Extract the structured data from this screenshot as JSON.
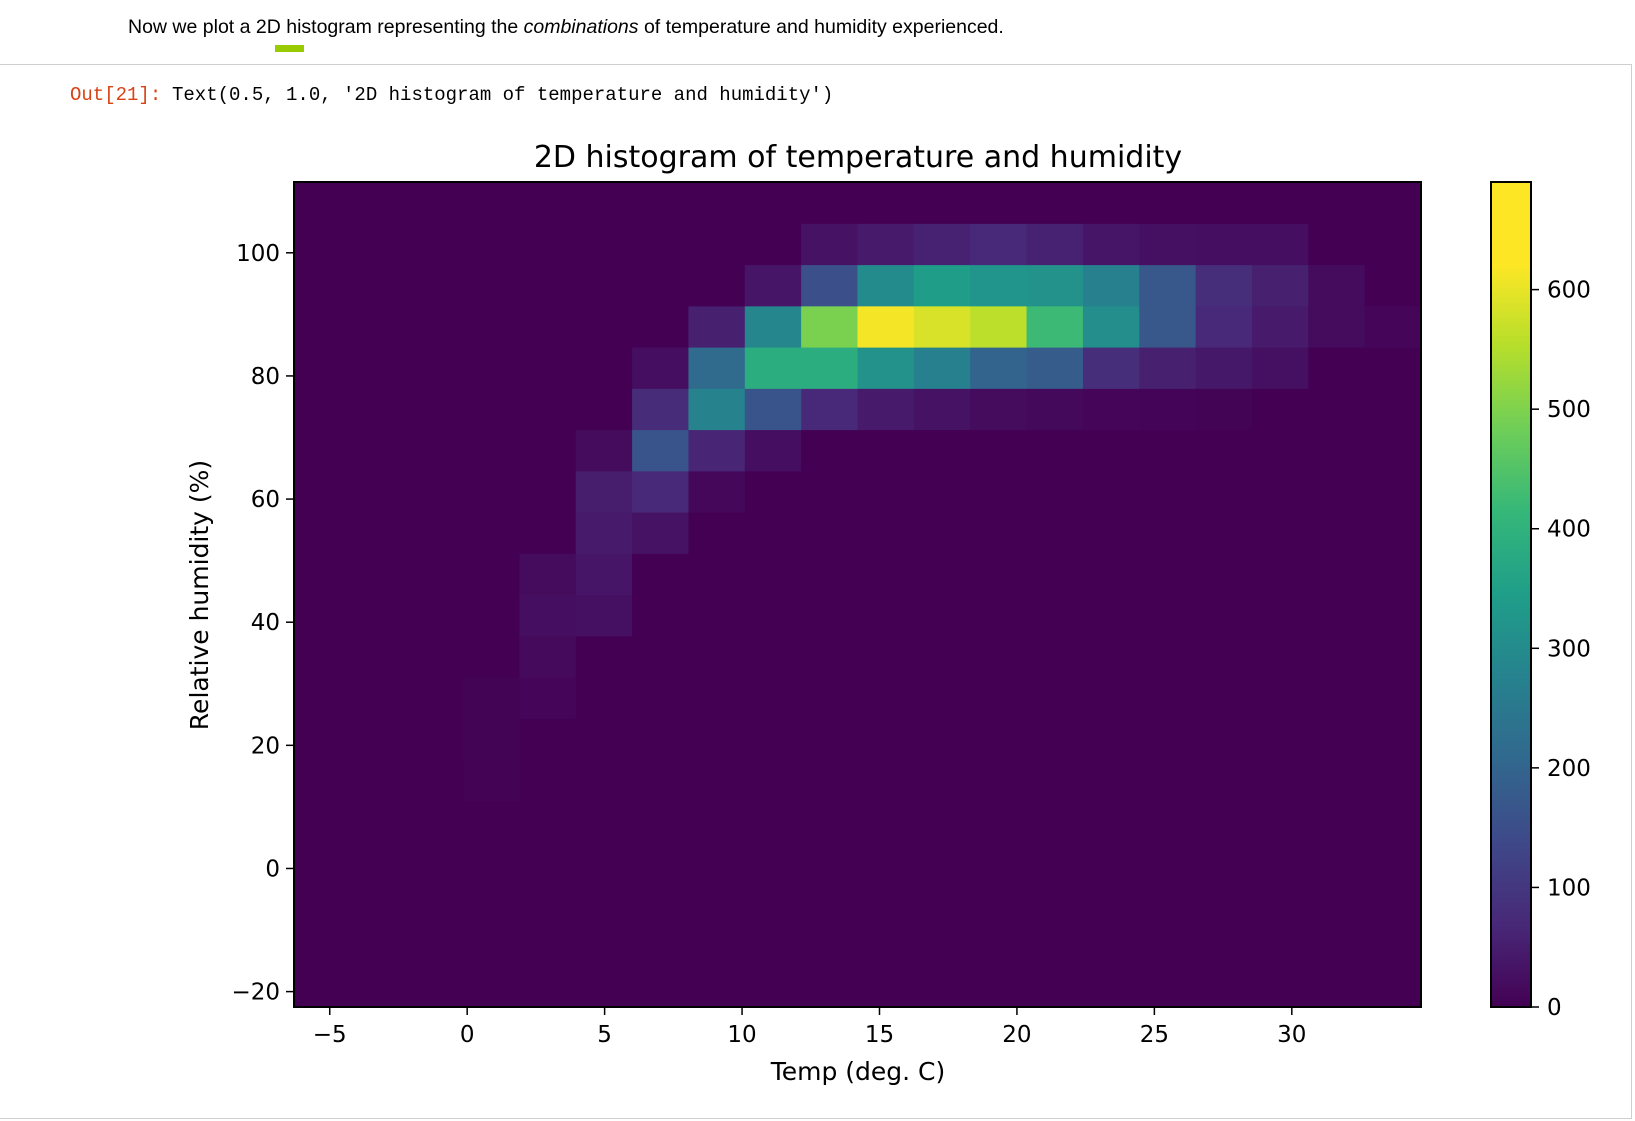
{
  "markdown": {
    "before": "Now we plot a 2D histogram representing the ",
    "emph": "combinations",
    "after": " of temperature and humidity experienced."
  },
  "output": {
    "prompt": "Out[21]:",
    "text": "Text(0.5, 1.0, '2D histogram of temperature and humidity')"
  },
  "chart_data": {
    "type": "heatmap",
    "title": "2D histogram of temperature and humidity",
    "xlabel": "Temp (deg. C)",
    "ylabel": "Relative humidity (%)",
    "xlim": [
      -6.3,
      34.7
    ],
    "ylim": [
      -22.5,
      111.5
    ],
    "xticks": [
      -5,
      0,
      5,
      10,
      15,
      20,
      25,
      30
    ],
    "yticks": [
      -20,
      0,
      20,
      40,
      60,
      80,
      100
    ],
    "x_edges": [
      -6.3,
      -4.25,
      -2.2,
      -0.15,
      1.9,
      3.95,
      6.0,
      8.05,
      10.1,
      12.15,
      14.2,
      16.25,
      18.3,
      20.35,
      22.4,
      24.45,
      26.5,
      28.55,
      30.6,
      32.65,
      34.7
    ],
    "y_edges": [
      -22.5,
      -15.8,
      -9.1,
      -2.4,
      4.3,
      11.0,
      17.7,
      24.4,
      31.1,
      37.8,
      44.5,
      51.2,
      57.9,
      64.6,
      71.3,
      78.0,
      84.7,
      91.4,
      98.1,
      104.8,
      111.5
    ],
    "counts": [
      [
        0,
        0,
        0,
        0,
        0,
        0,
        0,
        0,
        0,
        0,
        0,
        0,
        0,
        0,
        0,
        0,
        0,
        0,
        0,
        0
      ],
      [
        0,
        0,
        0,
        0,
        0,
        0,
        0,
        0,
        0,
        0,
        0,
        0,
        0,
        0,
        0,
        0,
        0,
        0,
        0,
        0
      ],
      [
        0,
        0,
        0,
        0,
        0,
        0,
        0,
        0,
        0,
        0,
        0,
        0,
        0,
        0,
        0,
        0,
        0,
        0,
        0,
        0
      ],
      [
        0,
        0,
        0,
        0,
        0,
        0,
        0,
        0,
        0,
        0,
        0,
        0,
        0,
        0,
        0,
        0,
        0,
        0,
        0,
        0
      ],
      [
        0,
        0,
        0,
        0,
        0,
        0,
        0,
        0,
        0,
        0,
        0,
        0,
        0,
        0,
        0,
        0,
        0,
        0,
        0,
        0
      ],
      [
        0,
        0,
        0,
        3,
        0,
        0,
        0,
        0,
        0,
        0,
        0,
        0,
        0,
        0,
        0,
        0,
        0,
        0,
        0,
        0
      ],
      [
        0,
        0,
        0,
        5,
        0,
        0,
        0,
        0,
        0,
        0,
        0,
        0,
        0,
        0,
        0,
        0,
        0,
        0,
        0,
        0
      ],
      [
        0,
        0,
        0,
        5,
        10,
        0,
        0,
        0,
        0,
        0,
        0,
        0,
        0,
        0,
        0,
        0,
        0,
        0,
        0,
        0
      ],
      [
        0,
        0,
        0,
        0,
        18,
        0,
        0,
        0,
        0,
        0,
        0,
        0,
        0,
        0,
        0,
        0,
        0,
        0,
        0,
        0
      ],
      [
        0,
        0,
        0,
        0,
        25,
        30,
        0,
        0,
        0,
        0,
        0,
        0,
        0,
        0,
        0,
        0,
        0,
        0,
        0,
        0
      ],
      [
        0,
        0,
        0,
        0,
        20,
        40,
        0,
        0,
        0,
        0,
        0,
        0,
        0,
        0,
        0,
        0,
        0,
        0,
        0,
        0
      ],
      [
        0,
        0,
        0,
        0,
        0,
        50,
        35,
        0,
        0,
        0,
        0,
        0,
        0,
        0,
        0,
        0,
        0,
        0,
        0,
        0
      ],
      [
        0,
        0,
        0,
        0,
        0,
        55,
        80,
        12,
        0,
        0,
        0,
        0,
        0,
        0,
        0,
        0,
        0,
        0,
        0,
        0
      ],
      [
        0,
        0,
        0,
        0,
        0,
        20,
        180,
        70,
        25,
        0,
        0,
        0,
        0,
        0,
        0,
        0,
        0,
        0,
        0,
        0
      ],
      [
        0,
        0,
        0,
        0,
        0,
        0,
        85,
        310,
        180,
        80,
        50,
        35,
        20,
        15,
        10,
        8,
        5,
        0,
        0,
        0
      ],
      [
        0,
        0,
        0,
        0,
        0,
        0,
        25,
        240,
        430,
        430,
        350,
        300,
        220,
        200,
        90,
        60,
        45,
        30,
        0,
        0
      ],
      [
        0,
        0,
        0,
        0,
        0,
        0,
        0,
        60,
        320,
        550,
        680,
        650,
        620,
        470,
        340,
        190,
        80,
        50,
        20,
        10
      ],
      [
        0,
        0,
        0,
        0,
        0,
        0,
        0,
        0,
        40,
        170,
        330,
        380,
        360,
        350,
        300,
        190,
        90,
        60,
        20,
        0
      ],
      [
        0,
        0,
        0,
        0,
        0,
        0,
        0,
        0,
        0,
        35,
        50,
        65,
        80,
        65,
        40,
        30,
        25,
        25,
        0,
        0
      ],
      [
        0,
        0,
        0,
        0,
        0,
        0,
        0,
        0,
        0,
        0,
        0,
        0,
        0,
        0,
        0,
        0,
        0,
        0,
        0,
        0
      ]
    ],
    "colorbar": {
      "range": [
        0,
        690
      ],
      "ticks": [
        0,
        100,
        200,
        300,
        400,
        500,
        600
      ],
      "colormap": "viridis"
    }
  }
}
